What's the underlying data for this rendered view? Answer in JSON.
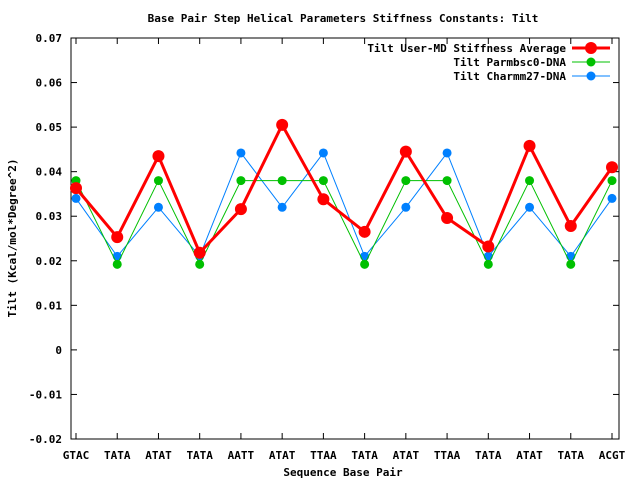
{
  "chart_data": {
    "type": "line",
    "title": "Base Pair Step Helical Parameters Stiffness Constants: Tilt",
    "xlabel": "Sequence Base Pair",
    "ylabel": "Tilt (Kcal/mol*Degree^2)",
    "categories": [
      "GTAC",
      "TATA",
      "ATAT",
      "TATA",
      "AATT",
      "ATAT",
      "TTAA",
      "TATA",
      "ATAT",
      "TTAA",
      "TATA",
      "ATAT",
      "TATA",
      "ACGT"
    ],
    "ylim": [
      -0.02,
      0.07
    ],
    "yticks": [
      -0.02,
      -0.01,
      0,
      0.01,
      0.02,
      0.03,
      0.04,
      0.05,
      0.06,
      0.07
    ],
    "ytick_labels": [
      "-0.02",
      "-0.01",
      "0",
      "0.01",
      "0.02",
      "0.03",
      "0.04",
      "0.05",
      "0.06",
      "0.07"
    ],
    "grid": false,
    "legend_position": "top-right",
    "series": [
      {
        "name": "Tilt User-MD Stiffness Average",
        "color": "#ff0000",
        "values": [
          0.0363,
          0.0253,
          0.0435,
          0.0218,
          0.0316,
          0.0505,
          0.0338,
          0.0265,
          0.0445,
          0.0296,
          0.0232,
          0.0458,
          0.0278,
          0.041
        ]
      },
      {
        "name": "Tilt Parmbsc0-DNA",
        "color": "#00c000",
        "values": [
          0.038,
          0.0192,
          0.038,
          0.0192,
          0.038,
          0.038,
          0.038,
          0.0192,
          0.038,
          0.038,
          0.0192,
          0.038,
          0.0192,
          0.038
        ]
      },
      {
        "name": "Tilt Charmm27-DNA",
        "color": "#0080ff",
        "values": [
          0.034,
          0.021,
          0.032,
          0.021,
          0.0442,
          0.032,
          0.0442,
          0.021,
          0.032,
          0.0442,
          0.021,
          0.032,
          0.021,
          0.034
        ]
      }
    ]
  }
}
